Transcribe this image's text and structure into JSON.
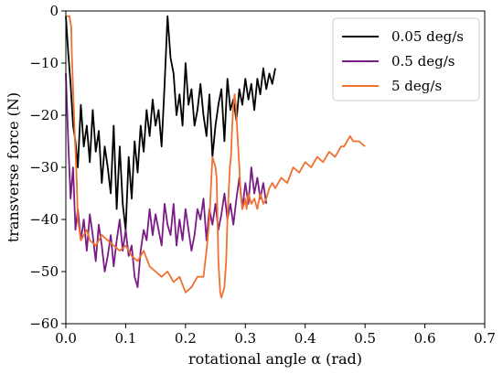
{
  "chart_data": {
    "type": "line",
    "title": "",
    "xlabel": "rotational angle α (rad)",
    "ylabel": "transverse force (N)",
    "xlim": [
      0.0,
      0.7
    ],
    "ylim": [
      -60,
      0
    ],
    "x_ticks": [
      "0.0",
      "0.1",
      "0.2",
      "0.3",
      "0.4",
      "0.5",
      "0.6",
      "0.7"
    ],
    "y_ticks": [
      "0",
      "−10",
      "−20",
      "−30",
      "−40",
      "−50",
      "−60"
    ],
    "grid": false,
    "legend_position": "top-right",
    "series": [
      {
        "name": "0.05 deg/s",
        "color": "#000000",
        "x": [
          0.0,
          0.004,
          0.008,
          0.012,
          0.016,
          0.02,
          0.025,
          0.03,
          0.035,
          0.04,
          0.045,
          0.05,
          0.055,
          0.06,
          0.065,
          0.07,
          0.075,
          0.08,
          0.085,
          0.09,
          0.095,
          0.1,
          0.105,
          0.11,
          0.115,
          0.12,
          0.125,
          0.13,
          0.135,
          0.14,
          0.145,
          0.15,
          0.155,
          0.16,
          0.165,
          0.17,
          0.175,
          0.18,
          0.185,
          0.19,
          0.195,
          0.2,
          0.205,
          0.21,
          0.215,
          0.22,
          0.225,
          0.23,
          0.235,
          0.24,
          0.245,
          0.25,
          0.255,
          0.26,
          0.265,
          0.27,
          0.275,
          0.28,
          0.285,
          0.29,
          0.295,
          0.3,
          0.305,
          0.31,
          0.315,
          0.32,
          0.325,
          0.33,
          0.335,
          0.34,
          0.345,
          0.35
        ],
        "y": [
          -1,
          -8,
          -14,
          -22,
          -25,
          -30,
          -18,
          -26,
          -22,
          -29,
          -19,
          -27,
          -23,
          -33,
          -26,
          -30,
          -35,
          -22,
          -38,
          -26,
          -37,
          -42,
          -28,
          -36,
          -25,
          -31,
          -22,
          -27,
          -19,
          -24,
          -17,
          -22,
          -19,
          -26,
          -14,
          -1,
          -9,
          -12,
          -20,
          -16,
          -22,
          -10,
          -18,
          -15,
          -22,
          -19,
          -14,
          -20,
          -24,
          -16,
          -28,
          -22,
          -18,
          -15,
          -25,
          -13,
          -19,
          -17,
          -21,
          -15,
          -18,
          -13,
          -17,
          -14,
          -19,
          -13,
          -16,
          -11,
          -15,
          -12,
          -14,
          -11
        ]
      },
      {
        "name": "0.5 deg/s",
        "color": "#7a1c86",
        "x": [
          0.0,
          0.004,
          0.008,
          0.012,
          0.016,
          0.02,
          0.025,
          0.03,
          0.035,
          0.04,
          0.045,
          0.05,
          0.055,
          0.06,
          0.065,
          0.07,
          0.075,
          0.08,
          0.085,
          0.09,
          0.095,
          0.1,
          0.105,
          0.11,
          0.115,
          0.12,
          0.125,
          0.13,
          0.135,
          0.14,
          0.145,
          0.15,
          0.155,
          0.16,
          0.165,
          0.17,
          0.175,
          0.18,
          0.185,
          0.19,
          0.195,
          0.2,
          0.205,
          0.21,
          0.215,
          0.22,
          0.225,
          0.23,
          0.235,
          0.24,
          0.245,
          0.25,
          0.255,
          0.26,
          0.265,
          0.27,
          0.275,
          0.28,
          0.285,
          0.29,
          0.295,
          0.3,
          0.305,
          0.31,
          0.315,
          0.32,
          0.325,
          0.33,
          0.335
        ],
        "y": [
          -12,
          -25,
          -36,
          -30,
          -42,
          -38,
          -44,
          -40,
          -46,
          -39,
          -43,
          -48,
          -41,
          -45,
          -50,
          -47,
          -43,
          -49,
          -44,
          -40,
          -46,
          -42,
          -47,
          -45,
          -51,
          -53,
          -46,
          -42,
          -44,
          -38,
          -43,
          -39,
          -42,
          -45,
          -37,
          -41,
          -43,
          -37,
          -45,
          -40,
          -44,
          -38,
          -42,
          -46,
          -43,
          -38,
          -40,
          -36,
          -44,
          -38,
          -41,
          -37,
          -42,
          -39,
          -35,
          -40,
          -37,
          -41,
          -36,
          -32,
          -38,
          -33,
          -37,
          -30,
          -35,
          -32,
          -36,
          -33,
          -37
        ]
      },
      {
        "name": "5 deg/s",
        "color": "#f07030",
        "x": [
          0.0,
          0.003,
          0.006,
          0.009,
          0.01,
          0.012,
          0.015,
          0.018,
          0.02,
          0.025,
          0.03,
          0.035,
          0.04,
          0.05,
          0.06,
          0.07,
          0.08,
          0.09,
          0.1,
          0.11,
          0.12,
          0.13,
          0.14,
          0.15,
          0.16,
          0.17,
          0.18,
          0.19,
          0.2,
          0.21,
          0.22,
          0.23,
          0.235,
          0.24,
          0.242,
          0.245,
          0.25,
          0.252,
          0.255,
          0.258,
          0.26,
          0.265,
          0.268,
          0.27,
          0.272,
          0.274,
          0.276,
          0.278,
          0.28,
          0.282,
          0.284,
          0.286,
          0.288,
          0.29,
          0.292,
          0.295,
          0.298,
          0.3,
          0.302,
          0.305,
          0.31,
          0.315,
          0.32,
          0.325,
          0.33,
          0.335,
          0.34,
          0.345,
          0.35,
          0.36,
          0.37,
          0.38,
          0.39,
          0.4,
          0.41,
          0.42,
          0.43,
          0.44,
          0.45,
          0.46,
          0.465,
          0.47,
          0.475,
          0.48,
          0.49,
          0.5
        ],
        "y": [
          -1,
          -1,
          -1,
          -3,
          -8,
          -15,
          -24,
          -32,
          -40,
          -44,
          -43,
          -42,
          -44,
          -45,
          -43,
          -44,
          -45,
          -46,
          -45,
          -47,
          -48,
          -46,
          -49,
          -50,
          -51,
          -50,
          -52,
          -51,
          -54,
          -53,
          -51,
          -51,
          -46,
          -40,
          -35,
          -28,
          -30,
          -32,
          -48,
          -54,
          -55,
          -53,
          -48,
          -40,
          -35,
          -30,
          -28,
          -22,
          -18,
          -16,
          -18,
          -22,
          -26,
          -30,
          -35,
          -38,
          -37,
          -36,
          -38,
          -35,
          -37,
          -36,
          -38,
          -35,
          -37,
          -36,
          -34,
          -33,
          -34,
          -32,
          -33,
          -30,
          -31,
          -29,
          -30,
          -28,
          -29,
          -27,
          -28,
          -26,
          -26,
          -25,
          -24,
          -25,
          -25,
          -26
        ]
      }
    ]
  }
}
